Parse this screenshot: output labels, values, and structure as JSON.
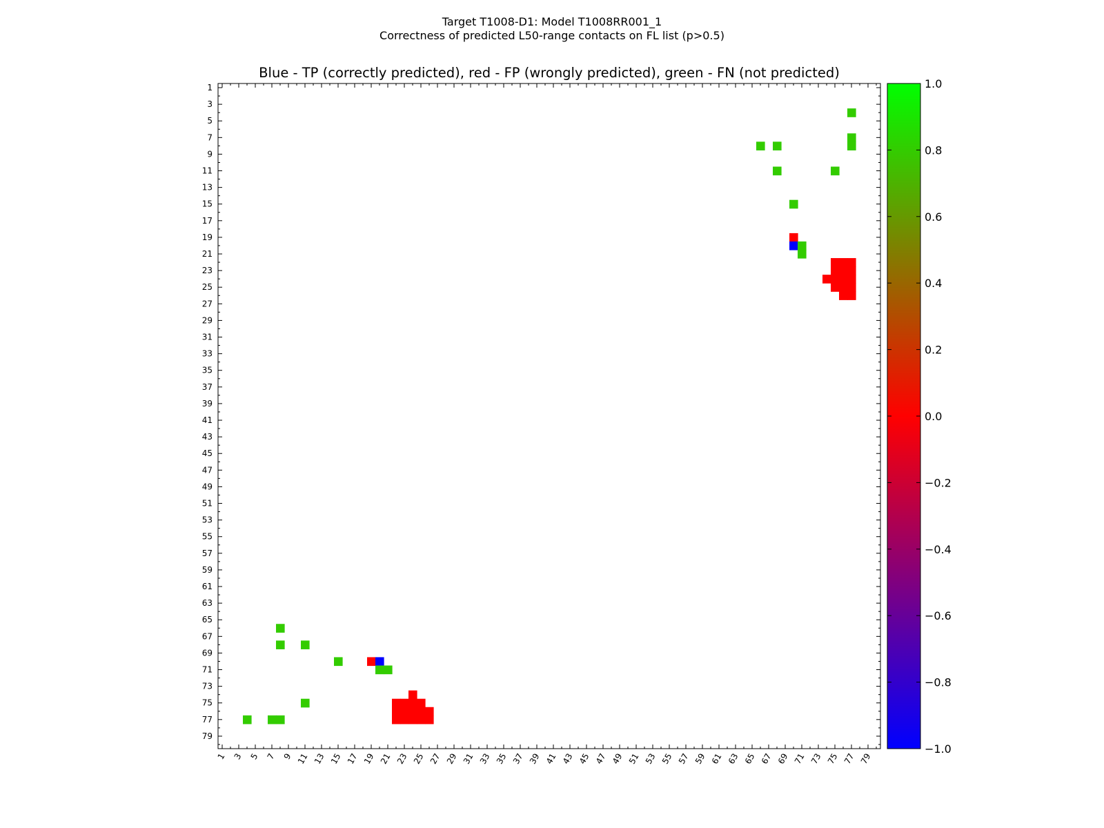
{
  "chart_data": {
    "type": "heatmap",
    "title": "Target T1008-D1: Model T1008RR001_1",
    "subtitle": "Correctness of predicted L50-range contacts on FL list (p>0.5)",
    "plot_title": "Blue - TP (correctly predicted), red - FP (wrongly predicted), green - FN (not predicted)",
    "x_range": [
      1,
      80
    ],
    "y_range": [
      1,
      80
    ],
    "x_ticks": [
      1,
      3,
      5,
      7,
      9,
      11,
      13,
      15,
      17,
      19,
      21,
      23,
      25,
      27,
      29,
      31,
      33,
      35,
      37,
      39,
      41,
      43,
      45,
      47,
      49,
      51,
      53,
      55,
      57,
      59,
      61,
      63,
      65,
      67,
      69,
      71,
      73,
      75,
      77,
      79
    ],
    "y_ticks": [
      1,
      3,
      5,
      7,
      9,
      11,
      13,
      15,
      17,
      19,
      21,
      23,
      25,
      27,
      29,
      31,
      33,
      35,
      37,
      39,
      41,
      43,
      45,
      47,
      49,
      51,
      53,
      55,
      57,
      59,
      61,
      63,
      65,
      67,
      69,
      71,
      73,
      75,
      77,
      79
    ],
    "colorbar": {
      "min": -1.0,
      "max": 1.0,
      "tick_values": [
        1.0,
        0.8,
        0.6,
        0.4,
        0.2,
        0.0,
        -0.2,
        -0.4,
        -0.6,
        -0.8,
        -1.0
      ],
      "tick_labels": [
        "1.0",
        "0.8",
        "0.6",
        "0.4",
        "0.2",
        "0.0",
        "−0.2",
        "−0.4",
        "−0.6",
        "−0.8",
        "−1.0"
      ]
    },
    "cells": [
      {
        "row": 4,
        "col": 77,
        "value": 0.8
      },
      {
        "row": 7,
        "col": 77,
        "value": 0.8
      },
      {
        "row": 8,
        "col": 77,
        "value": 0.8
      },
      {
        "row": 8,
        "col": 66,
        "value": 0.8
      },
      {
        "row": 8,
        "col": 68,
        "value": 0.8
      },
      {
        "row": 11,
        "col": 68,
        "value": 0.8
      },
      {
        "row": 11,
        "col": 75,
        "value": 0.8
      },
      {
        "row": 15,
        "col": 70,
        "value": 0.8
      },
      {
        "row": 19,
        "col": 70,
        "value": 0.0
      },
      {
        "row": 20,
        "col": 70,
        "value": -1.0
      },
      {
        "row": 20,
        "col": 71,
        "value": 0.8
      },
      {
        "row": 21,
        "col": 71,
        "value": 0.8
      },
      {
        "row": 22,
        "col": 75,
        "value": 0.0
      },
      {
        "row": 22,
        "col": 76,
        "value": 0.0
      },
      {
        "row": 22,
        "col": 77,
        "value": 0.0
      },
      {
        "row": 23,
        "col": 75,
        "value": 0.0
      },
      {
        "row": 23,
        "col": 76,
        "value": 0.0
      },
      {
        "row": 23,
        "col": 77,
        "value": 0.0
      },
      {
        "row": 24,
        "col": 74,
        "value": 0.0
      },
      {
        "row": 24,
        "col": 75,
        "value": 0.0
      },
      {
        "row": 24,
        "col": 76,
        "value": 0.0
      },
      {
        "row": 24,
        "col": 77,
        "value": 0.0
      },
      {
        "row": 25,
        "col": 75,
        "value": 0.0
      },
      {
        "row": 25,
        "col": 76,
        "value": 0.0
      },
      {
        "row": 25,
        "col": 77,
        "value": 0.0
      },
      {
        "row": 26,
        "col": 76,
        "value": 0.0
      },
      {
        "row": 26,
        "col": 77,
        "value": 0.0
      },
      {
        "row": 66,
        "col": 8,
        "value": 0.8
      },
      {
        "row": 68,
        "col": 8,
        "value": 0.8
      },
      {
        "row": 68,
        "col": 11,
        "value": 0.8
      },
      {
        "row": 70,
        "col": 15,
        "value": 0.8
      },
      {
        "row": 70,
        "col": 19,
        "value": 0.0
      },
      {
        "row": 70,
        "col": 20,
        "value": -1.0
      },
      {
        "row": 71,
        "col": 20,
        "value": 0.8
      },
      {
        "row": 71,
        "col": 21,
        "value": 0.8
      },
      {
        "row": 74,
        "col": 24,
        "value": 0.0
      },
      {
        "row": 75,
        "col": 11,
        "value": 0.8
      },
      {
        "row": 75,
        "col": 22,
        "value": 0.0
      },
      {
        "row": 75,
        "col": 23,
        "value": 0.0
      },
      {
        "row": 75,
        "col": 24,
        "value": 0.0
      },
      {
        "row": 75,
        "col": 25,
        "value": 0.0
      },
      {
        "row": 76,
        "col": 22,
        "value": 0.0
      },
      {
        "row": 76,
        "col": 23,
        "value": 0.0
      },
      {
        "row": 76,
        "col": 24,
        "value": 0.0
      },
      {
        "row": 76,
        "col": 25,
        "value": 0.0
      },
      {
        "row": 76,
        "col": 26,
        "value": 0.0
      },
      {
        "row": 77,
        "col": 4,
        "value": 0.8
      },
      {
        "row": 77,
        "col": 7,
        "value": 0.8
      },
      {
        "row": 77,
        "col": 8,
        "value": 0.8
      },
      {
        "row": 77,
        "col": 22,
        "value": 0.0
      },
      {
        "row": 77,
        "col": 23,
        "value": 0.0
      },
      {
        "row": 77,
        "col": 24,
        "value": 0.0
      },
      {
        "row": 77,
        "col": 25,
        "value": 0.0
      },
      {
        "row": 77,
        "col": 26,
        "value": 0.0
      }
    ]
  }
}
